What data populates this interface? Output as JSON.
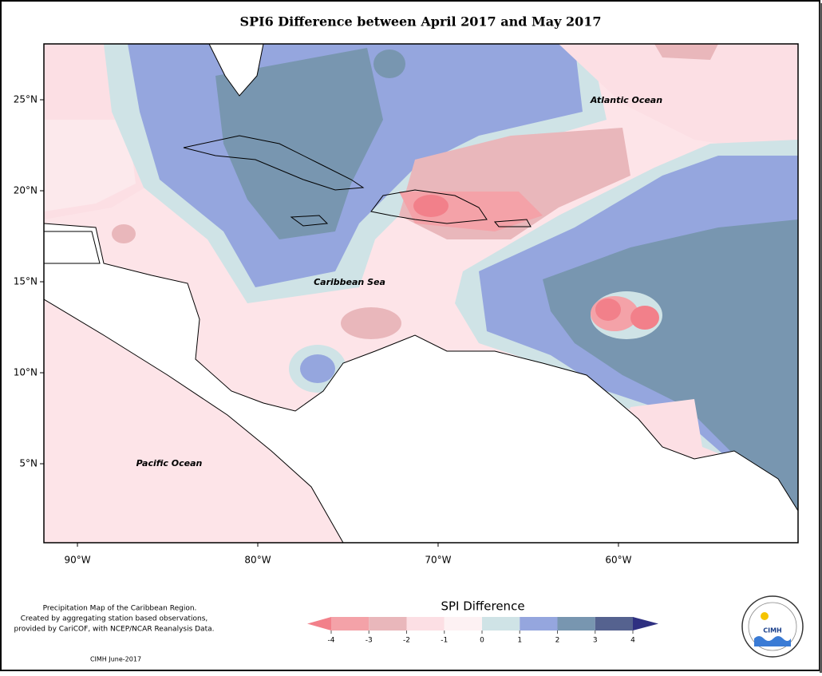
{
  "title": "SPI6 Difference between April 2017 and May 2017",
  "map": {
    "lon_range": [
      -91.86,
      -50.04
    ],
    "lat_range": [
      0.66,
      28.07
    ],
    "lat_ticks": [
      {
        "value": 25,
        "label": "25°N"
      },
      {
        "value": 20,
        "label": "20°N"
      },
      {
        "value": 15,
        "label": "15°N"
      },
      {
        "value": 10,
        "label": "10°N"
      },
      {
        "value": 5,
        "label": "5°N"
      }
    ],
    "lon_ticks": [
      {
        "value": -90,
        "label": "90°W"
      },
      {
        "value": -80,
        "label": "80°W"
      },
      {
        "value": -70,
        "label": "70°W"
      },
      {
        "value": -60,
        "label": "60°W"
      }
    ],
    "labels": {
      "atlantic": "Atlantic Ocean",
      "caribbean": "Caribbean Sea",
      "pacific": "Pacific Ocean"
    }
  },
  "legend": {
    "title": "SPI Difference",
    "ticks": [
      -4,
      -3,
      -2,
      -1,
      0,
      1,
      2,
      3,
      4
    ],
    "colors": [
      "#f2808a",
      "#f4a2a8",
      "#e9b7bb",
      "#fcdfe4",
      "#fdf1f3",
      "#cfe3e6",
      "#95a6de",
      "#7896b0",
      "#55628f",
      "#2e3081"
    ]
  },
  "footnote": [
    "Precipitation Map of the Caribbean Region.",
    "Created by aggregating station based observations,",
    "provided by CariCOF, with NCEP/NCAR Reanalysis Data."
  ],
  "credit": "CIMH June-2017",
  "logo": "CIMH"
}
